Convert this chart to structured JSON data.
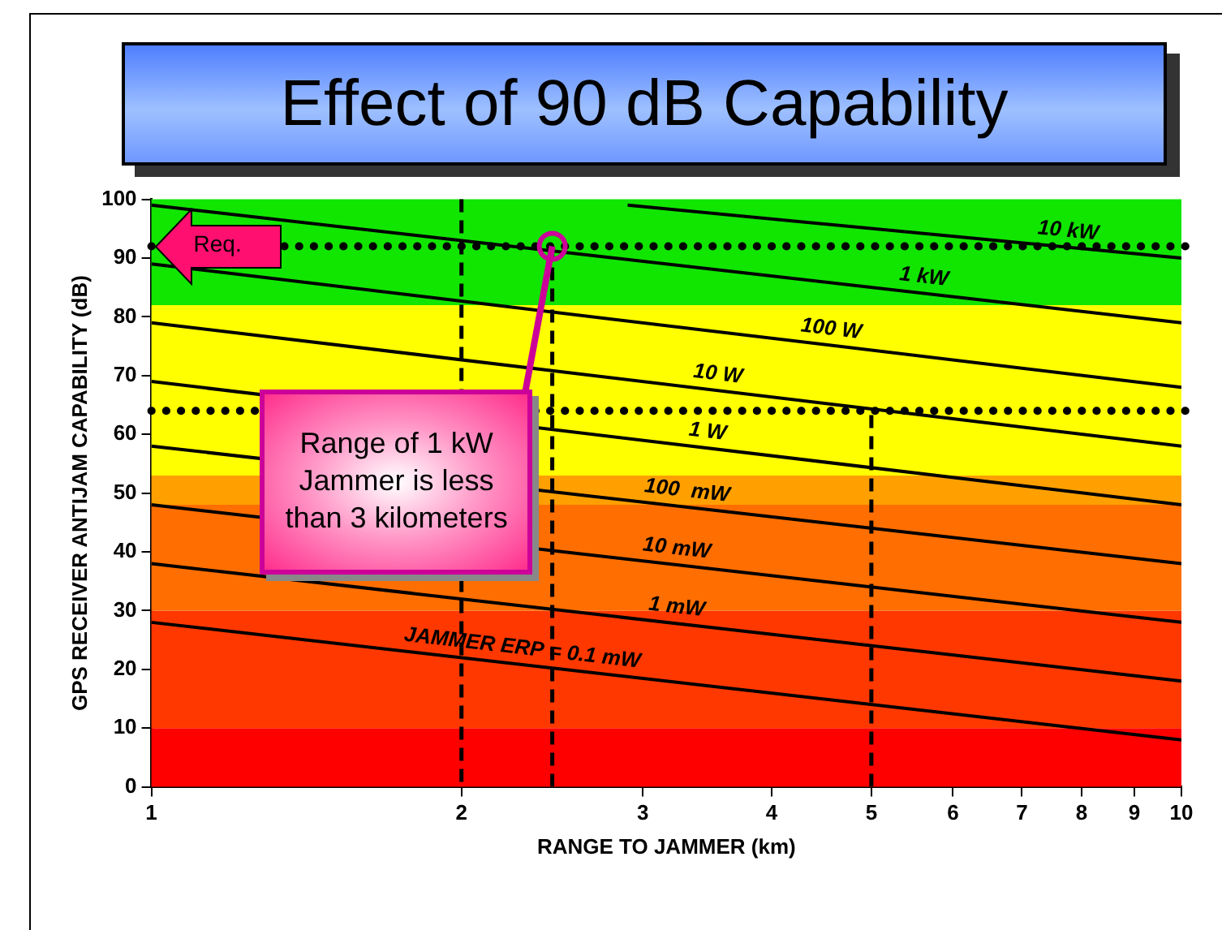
{
  "chart_data": {
    "type": "line",
    "title": "Effect of 90 dB Capability",
    "xlabel": "RANGE TO JAMMER (km)",
    "ylabel": "GPS RECEIVER ANTIJAM CAPABILITY (dB)",
    "log": "x",
    "xlim": [
      1,
      10
    ],
    "xticks": [
      1,
      2,
      3,
      4,
      5,
      6,
      7,
      8,
      9,
      10
    ],
    "ylim": [
      0,
      100
    ],
    "yticks": [
      0,
      10,
      20,
      30,
      40,
      50,
      60,
      70,
      80,
      90,
      100
    ],
    "grid": false,
    "legend": false,
    "series": [
      {
        "name": "JAMMER ERP = 0.1 mW",
        "color": "#000000",
        "x": [
          1,
          10
        ],
        "values": [
          28,
          8
        ]
      },
      {
        "name": "1 mW",
        "color": "#000000",
        "x": [
          1,
          10
        ],
        "values": [
          38,
          18
        ]
      },
      {
        "name": "10 mW",
        "color": "#000000",
        "x": [
          1,
          10
        ],
        "values": [
          48,
          28
        ]
      },
      {
        "name": "100  mW",
        "color": "#000000",
        "x": [
          1,
          10
        ],
        "values": [
          58,
          38
        ]
      },
      {
        "name": "1 W",
        "color": "#000000",
        "x": [
          1,
          10
        ],
        "values": [
          69,
          48
        ]
      },
      {
        "name": "10 W",
        "color": "#000000",
        "x": [
          1,
          10
        ],
        "values": [
          79,
          58
        ]
      },
      {
        "name": "100 W",
        "color": "#000000",
        "x": [
          1,
          10
        ],
        "values": [
          89,
          68
        ]
      },
      {
        "name": "1 kW",
        "color": "#000000",
        "x": [
          1,
          10
        ],
        "values": [
          99,
          79
        ]
      },
      {
        "name": "10 kW",
        "color": "#000000",
        "x": [
          2.9,
          10
        ],
        "values": [
          99,
          90
        ]
      },
      {
        "color": "#000000",
        "x": [
          2.45,
          2.45
        ],
        "values": [
          0,
          92
        ],
        "line_style": "dashed"
      },
      {
        "color": "#000000",
        "x": [
          5,
          5
        ],
        "values": [
          0,
          64
        ],
        "line_style": "dashed"
      }
    ],
    "ref_lines": [
      {
        "axis": "y",
        "value": 92,
        "color": "#000000",
        "line_style": "dotted"
      },
      {
        "axis": "y",
        "value": 64,
        "color": "#000000",
        "line_style": "dotted"
      },
      {
        "axis": "x",
        "value": 2,
        "color": "#000000",
        "line_style": "dashed"
      }
    ],
    "bands": [
      {
        "axis": "y",
        "from": 0,
        "to": 10,
        "color": "#ff0000"
      },
      {
        "axis": "y",
        "from": 10,
        "to": 30,
        "color": "#ff3800"
      },
      {
        "axis": "y",
        "from": 30,
        "to": 48,
        "color": "#ff6e00"
      },
      {
        "axis": "y",
        "from": 48,
        "to": 53,
        "color": "#ffa000"
      },
      {
        "axis": "y",
        "from": 53,
        "to": 82,
        "color": "#ffff00"
      },
      {
        "axis": "y",
        "from": 82,
        "to": 100,
        "color": "#11e600"
      }
    ],
    "annotations": [
      {
        "text": "Req.",
        "x": 1,
        "y": 92
      },
      {
        "text": "Range of 1 kW Jammer is less than 3 kilometers",
        "x": 2.45,
        "y": 92
      }
    ]
  }
}
